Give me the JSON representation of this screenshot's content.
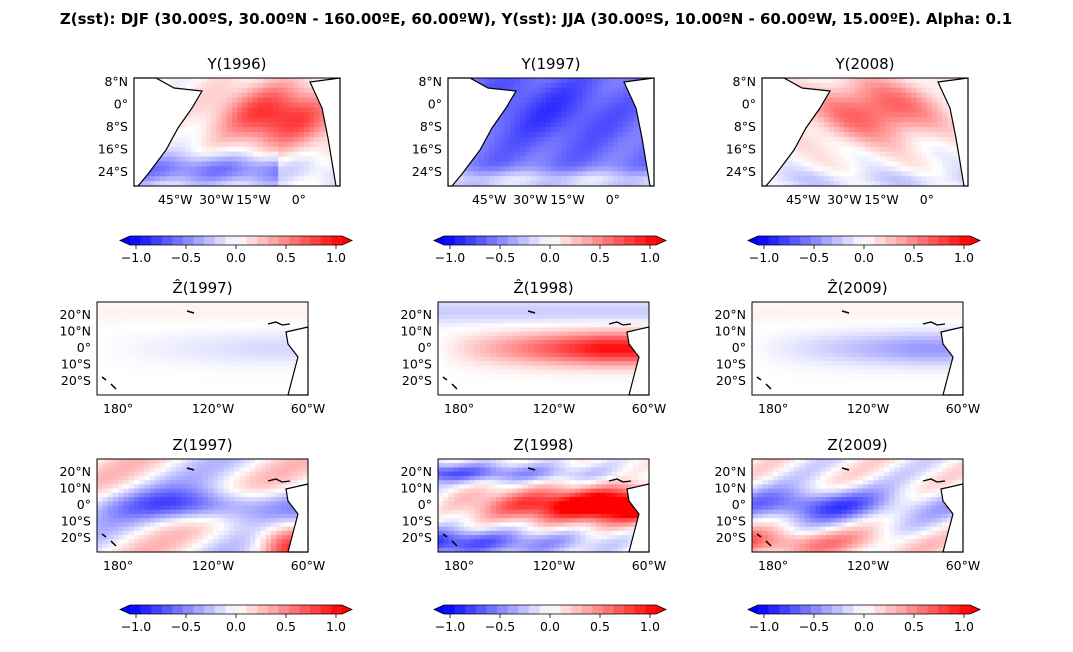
{
  "figure": {
    "suptitle": "Z(sst): DJF (30.00ºS, 30.00ºN - 160.00ºE, 60.00ºW), Y(sst): JJA (30.00ºS, 10.00ºN - 60.00ºW, 15.00ºE). Alpha: 0.1"
  },
  "colorbar": {
    "colormap": "bwr",
    "range": [
      -1.0,
      1.0
    ],
    "extend": "both",
    "ticks": [
      "−1.0",
      "−0.5",
      "0.0",
      "0.5",
      "1.0"
    ],
    "colors": {
      "negative": "#0000ff",
      "neutral": "#ffffff",
      "positive": "#ff0000"
    }
  },
  "map_y": {
    "region": "Tropical Atlantic",
    "lat_ticks": [
      "8°N",
      "0°",
      "8°S",
      "16°S",
      "24°S"
    ],
    "lon_ticks": [
      "45°W",
      "30°W",
      "15°W",
      "0°"
    ]
  },
  "map_z": {
    "region": "Tropical Pacific",
    "lat_ticks": [
      "20°N",
      "10°N",
      "0°",
      "10°S",
      "20°S"
    ],
    "lon_ticks": [
      "180°",
      "120°W",
      "60°W"
    ]
  },
  "rows": [
    {
      "kind": "Y",
      "panels": [
        {
          "title": "Y(1996)",
          "pattern": "positive anomaly centred in eastern South Atlantic, negative band in south-west",
          "amplitude": 0.6
        },
        {
          "title": "Y(1997)",
          "pattern": "basin-wide negative anomaly",
          "amplitude": -0.7
        },
        {
          "title": "Y(2008)",
          "pattern": "positive anomaly centred in eastern South Atlantic",
          "amplitude": 0.5
        }
      ]
    },
    {
      "kind": "Zhat",
      "panels": [
        {
          "title": "Ẑ(1997)",
          "pattern": "weak negative equatorial tongue",
          "amplitude": -0.15
        },
        {
          "title": "Ẑ(1998)",
          "pattern": "strong positive equatorial tongue (El Niño-like)",
          "amplitude": 0.9
        },
        {
          "title": "Ẑ(2009)",
          "pattern": "moderate negative equatorial tongue",
          "amplitude": -0.35
        }
      ]
    },
    {
      "kind": "Z",
      "panels": [
        {
          "title": "Z(1997)",
          "pattern": "mixed pattern, negative central equatorial Pacific, positive south-east",
          "amplitude": -0.6
        },
        {
          "title": "Z(1998)",
          "pattern": "strong positive equatorial tongue, negative flanks",
          "amplitude": 1.0
        },
        {
          "title": "Z(2009)",
          "pattern": "negative equatorial band, positive south-west",
          "amplitude": -0.6
        }
      ]
    }
  ]
}
